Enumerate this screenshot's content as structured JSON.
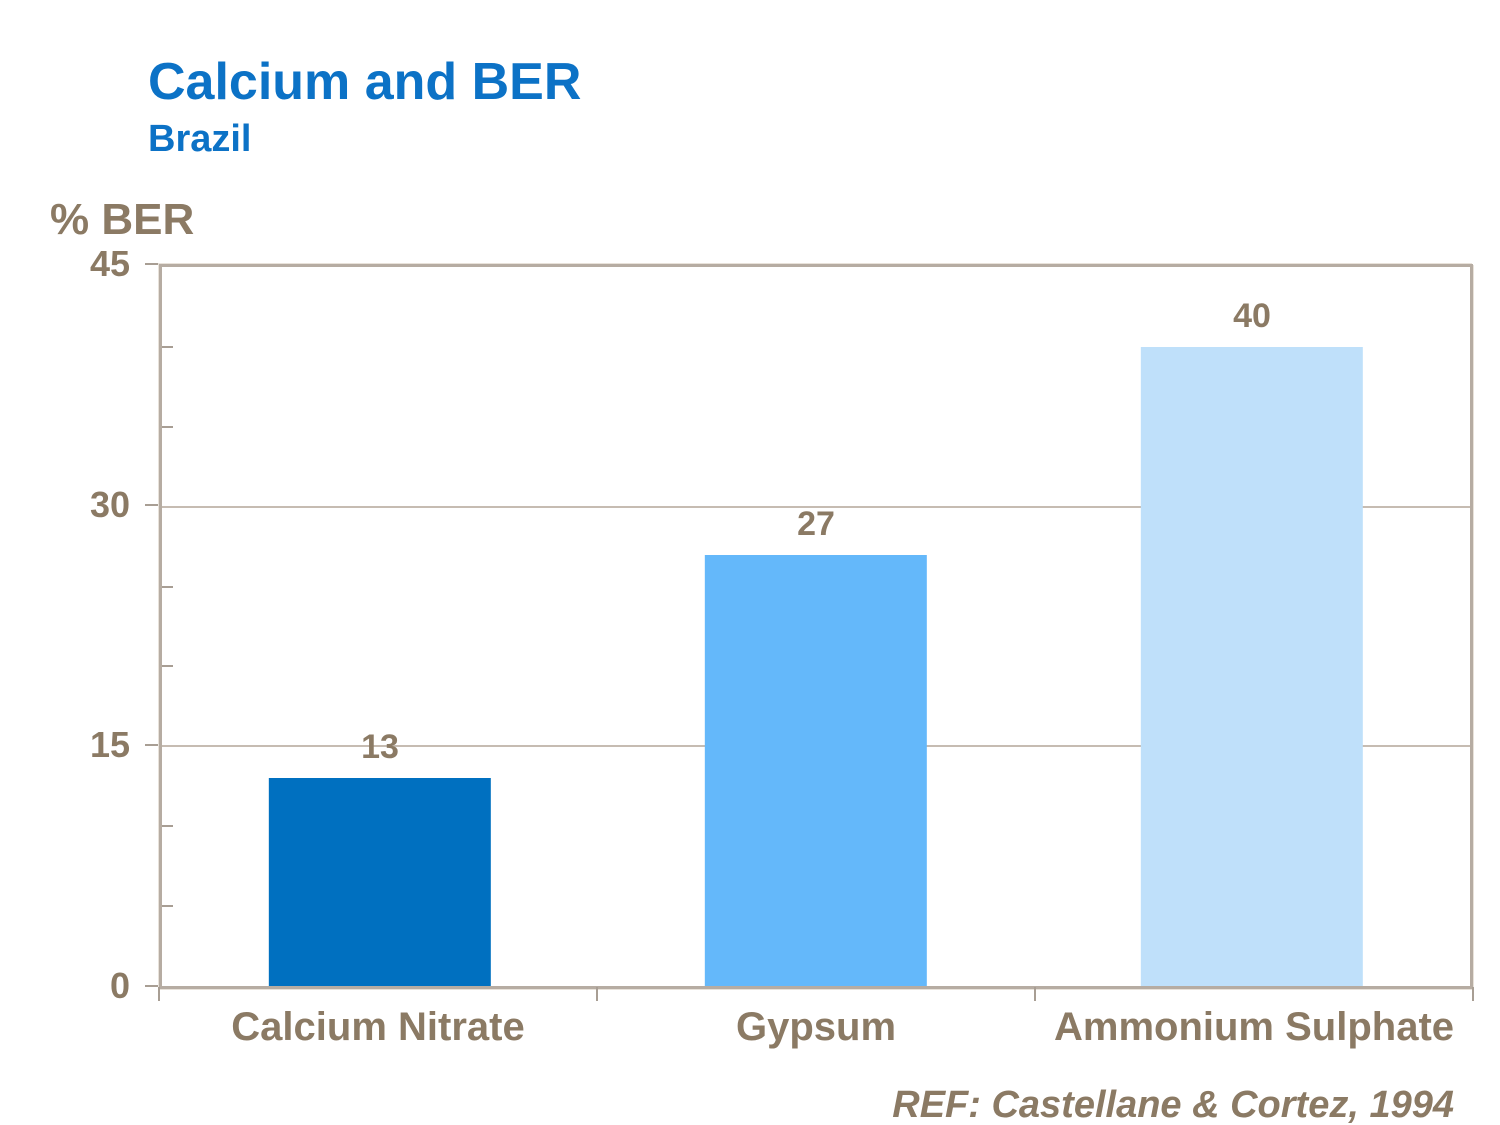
{
  "slide": {
    "title": "Calcium and BER",
    "subtitle": "Brazil",
    "y_axis_label": "% BER",
    "footer": "REF: Castellane & Cortez, 1994"
  },
  "colors": {
    "title_blue": "#0C72C6",
    "text_brown": "#8B7A64",
    "axis_frame": "#B6ACA2",
    "tick": "#A89E94",
    "gridline": "#C6BCB2",
    "background": "#FFFFFF"
  },
  "chart_data": {
    "type": "bar",
    "title": "Calcium and BER",
    "subtitle": "Brazil",
    "categories": [
      "Calcium Nitrate",
      "Gypsum",
      "Ammonium Sulphate"
    ],
    "values": [
      13,
      27,
      40
    ],
    "bar_colors": [
      "#0070C0",
      "#64B8FA",
      "#BFE0FA"
    ],
    "data_labels": [
      13,
      27,
      40
    ],
    "xlabel": "",
    "ylabel": "% BER",
    "ylim": [
      0,
      45
    ],
    "yticks_major": [
      0,
      15,
      30,
      45
    ],
    "ytick_minor_step": 5,
    "grid": "horizontal-major",
    "legend": "none",
    "reference": "REF: Castellane & Cortez, 1994"
  }
}
